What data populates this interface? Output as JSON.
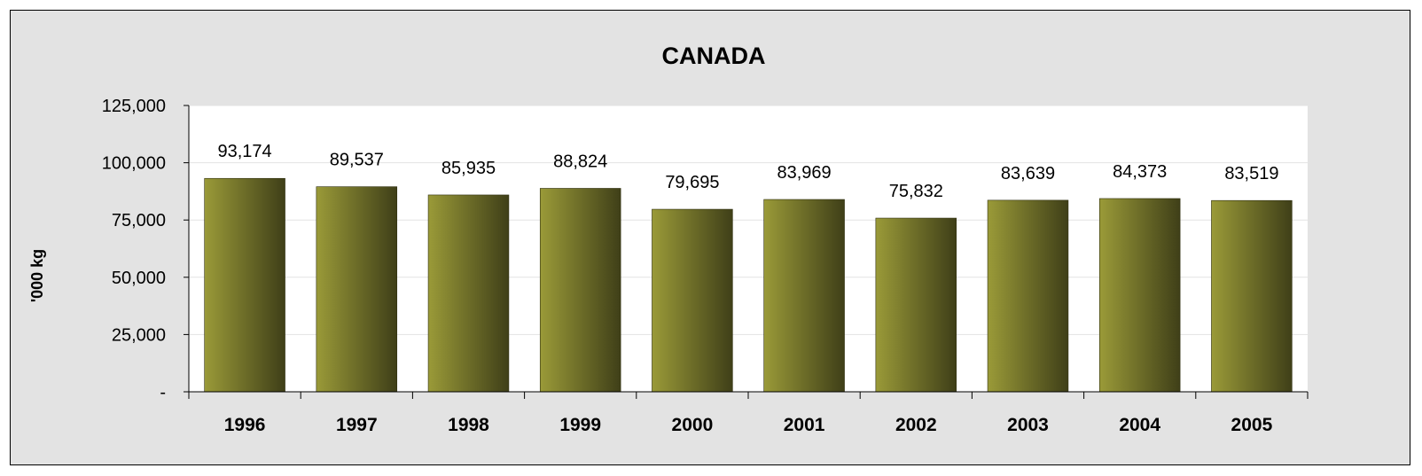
{
  "chart_data": {
    "type": "bar",
    "title": "CANADA",
    "xlabel": "",
    "ylabel": "'000 kg",
    "categories": [
      "1996",
      "1997",
      "1998",
      "1999",
      "2000",
      "2001",
      "2002",
      "2003",
      "2004",
      "2005"
    ],
    "values": [
      93174,
      89537,
      85935,
      88824,
      79695,
      83969,
      75832,
      83639,
      84373,
      83519
    ],
    "data_labels": [
      "93,174",
      "89,537",
      "85,935",
      "88,824",
      "79,695",
      "83,969",
      "75,832",
      "83,639",
      "84,373",
      "83,519"
    ],
    "ylim": [
      0,
      125000
    ],
    "yticks": [
      0,
      25000,
      50000,
      75000,
      100000,
      125000
    ],
    "ytick_labels": [
      "-",
      "25,000",
      "50,000",
      "75,000",
      "100,000",
      "125,000"
    ],
    "grid": true,
    "legend": "none",
    "colors": {
      "bar_light": "#9a9a38",
      "bar_dark": "#3f3f18",
      "plot_bg": "#ffffff",
      "frame_bg": "#e3e3e3",
      "gridline": "#e3e3e3"
    }
  }
}
